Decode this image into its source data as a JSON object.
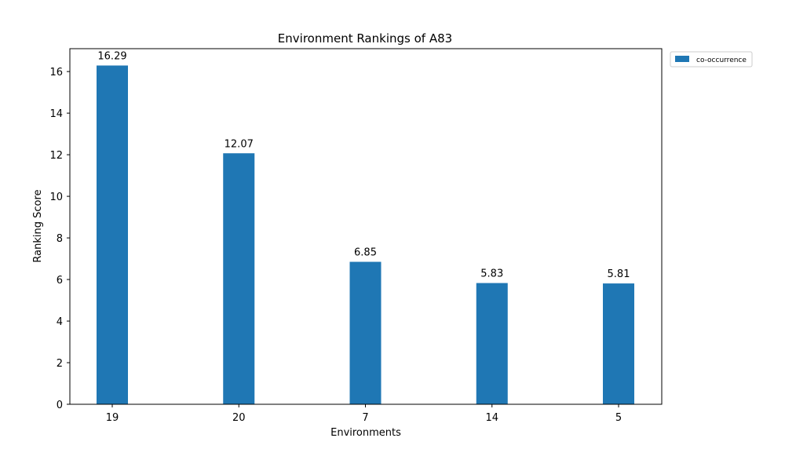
{
  "chart_data": {
    "type": "bar",
    "title": "Environment Rankings of A83",
    "xlabel": "Environments",
    "ylabel": "Ranking Score",
    "categories": [
      "19",
      "20",
      "7",
      "14",
      "5"
    ],
    "series": [
      {
        "name": "co-occurrence",
        "values": [
          16.29,
          12.07,
          6.85,
          5.83,
          5.81
        ],
        "color": "#1f77b4"
      }
    ],
    "data_labels": [
      "16.29",
      "12.07",
      "6.85",
      "5.83",
      "5.81"
    ],
    "ylim": [
      0,
      17.1
    ],
    "yticks": [
      0,
      2,
      4,
      6,
      8,
      10,
      12,
      14,
      16
    ],
    "ytick_labels": [
      "0",
      "2",
      "4",
      "6",
      "8",
      "10",
      "12",
      "14",
      "16"
    ],
    "grid": false,
    "legend_position": "outside-top-right"
  }
}
